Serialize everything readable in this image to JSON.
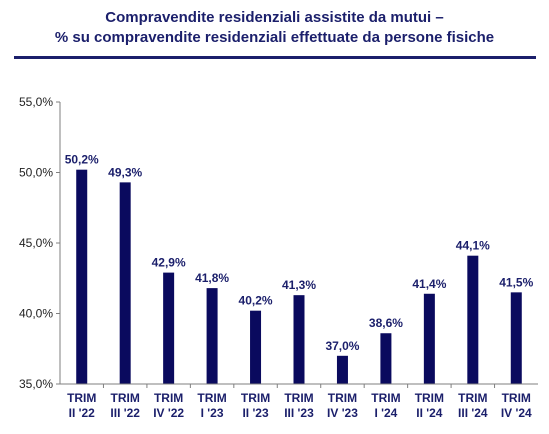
{
  "title": {
    "line1": "Compravendite residenziali assistite da mutui –",
    "line2": "% su compravendite residenziali effettuate da persone fisiche"
  },
  "colors": {
    "bar": "#0a0a5e",
    "title": "#1b1f6b",
    "axis": "#7f7f7f"
  },
  "chart_data": {
    "type": "bar",
    "categories": [
      [
        "TRIM",
        "II '22"
      ],
      [
        "TRIM",
        "III '22"
      ],
      [
        "TRIM",
        "IV '22"
      ],
      [
        "TRIM",
        "I '23"
      ],
      [
        "TRIM",
        "II '23"
      ],
      [
        "TRIM",
        "III '23"
      ],
      [
        "TRIM",
        "IV '23"
      ],
      [
        "TRIM",
        "I '24"
      ],
      [
        "TRIM",
        "II '24"
      ],
      [
        "TRIM",
        "III '24"
      ],
      [
        "TRIM",
        "IV '24"
      ]
    ],
    "values": [
      50.2,
      49.3,
      42.9,
      41.8,
      40.2,
      41.3,
      37.0,
      38.6,
      41.4,
      44.1,
      41.5
    ],
    "data_labels": [
      "50,2%",
      "49,3%",
      "42,9%",
      "41,8%",
      "40,2%",
      "41,3%",
      "37,0%",
      "38,6%",
      "41,4%",
      "44,1%",
      "41,5%"
    ],
    "yticks": [
      35,
      40,
      45,
      50,
      55
    ],
    "ytick_labels": [
      "35,0%",
      "40,0%",
      "45,0%",
      "50,0%",
      "55,0%"
    ],
    "ylim": [
      35,
      55
    ],
    "grid": false,
    "legend": "none"
  }
}
